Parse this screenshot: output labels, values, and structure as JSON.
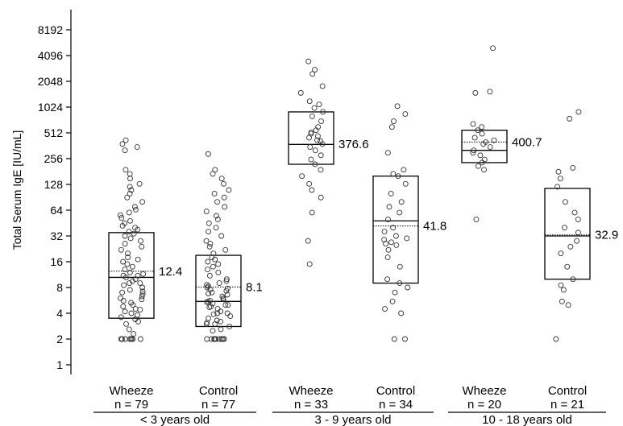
{
  "chart_data": {
    "type": "box-scatter",
    "ylabel": "Total Serum IgE [IU/mL]",
    "y_scale": "log2",
    "y_ticks": [
      1,
      2,
      4,
      8,
      16,
      32,
      64,
      128,
      256,
      512,
      1024,
      2048,
      4096,
      8192
    ],
    "y_tick_labels": [
      "1",
      "2",
      "4",
      "8",
      "16",
      "32",
      "64",
      "128",
      "256",
      "512",
      "1024",
      "2048",
      "4096",
      "8192"
    ],
    "ylim": [
      0.7,
      16384
    ],
    "age_groups": [
      "< 3 years old",
      "3 - 9 years old",
      "10 - 18 years old"
    ],
    "groups": [
      {
        "name": "Wheeze",
        "n_label": "n = 79",
        "age_group": 0,
        "q1": 3.5,
        "median": 10.5,
        "q3": 35,
        "mean": 12.4,
        "mean_label": "12.4",
        "points": [
          2,
          2,
          2,
          2,
          2,
          2,
          2,
          2,
          2.3,
          2.6,
          3,
          3.2,
          3.4,
          3.6,
          4,
          4.2,
          4.5,
          4.8,
          5,
          5.3,
          5.6,
          6,
          6.3,
          6.7,
          7,
          7.5,
          8,
          8.5,
          9,
          9.5,
          10,
          10.5,
          11,
          11.5,
          12,
          13,
          14,
          15,
          16,
          17,
          18,
          20,
          22,
          24,
          26,
          28,
          30,
          32,
          34,
          36,
          38,
          40,
          42,
          45,
          48,
          52,
          56,
          60,
          65,
          70,
          80,
          90,
          100,
          110,
          120,
          130,
          150,
          170,
          190,
          320,
          350,
          380,
          420,
          11,
          9,
          7.2,
          5.8,
          4.4,
          3.8
        ]
      },
      {
        "name": "Control",
        "n_label": "n = 77",
        "age_group": 0,
        "q1": 2.8,
        "median": 5.5,
        "q3": 19,
        "mean": 8.1,
        "mean_label": "8.1",
        "points": [
          2,
          2,
          2,
          2,
          2,
          2,
          2,
          2,
          2,
          2.5,
          2.8,
          3,
          3,
          3.2,
          3.3,
          3.5,
          3.7,
          4,
          4,
          4.2,
          4.5,
          4.7,
          5,
          5,
          5.2,
          5.4,
          5.6,
          5.8,
          6,
          6.3,
          6.6,
          7,
          7.3,
          7.6,
          8,
          8.3,
          8.6,
          9,
          9.5,
          10,
          11,
          12,
          13,
          14,
          15,
          16,
          17,
          18,
          20,
          22,
          24,
          26,
          28,
          32,
          36,
          40,
          45,
          50,
          55,
          62,
          70,
          80,
          90,
          100,
          110,
          130,
          150,
          170,
          190,
          290,
          7.8,
          6.8,
          5.5,
          4.8,
          3.9,
          3.1,
          2.6
        ]
      },
      {
        "name": "Wheeze",
        "n_label": "n = 33",
        "age_group": 1,
        "q1": 220,
        "median": 375,
        "q3": 900,
        "mean": 376.6,
        "mean_label": "376.6",
        "points": [
          15,
          28,
          60,
          90,
          110,
          130,
          160,
          190,
          220,
          250,
          280,
          320,
          350,
          380,
          410,
          450,
          500,
          550,
          600,
          700,
          800,
          900,
          1000,
          1100,
          1200,
          1500,
          1800,
          2500,
          2800,
          3500,
          420,
          470,
          520
        ]
      },
      {
        "name": "Control",
        "n_label": "n = 34",
        "age_group": 1,
        "q1": 9,
        "median": 48,
        "q3": 160,
        "mean": 41.8,
        "mean_label": "41.8",
        "points": [
          2,
          2,
          4,
          4.5,
          5.5,
          7,
          8,
          9,
          10,
          14,
          18,
          22,
          25,
          27,
          29,
          30,
          32,
          36,
          40,
          50,
          60,
          70,
          80,
          100,
          130,
          160,
          170,
          190,
          300,
          600,
          700,
          850,
          1050,
          26
        ]
      },
      {
        "name": "Wheeze",
        "n_label": "n = 20",
        "age_group": 2,
        "q1": 230,
        "median": 320,
        "q3": 550,
        "mean": 400.7,
        "mean_label": "400.7",
        "points": [
          50,
          190,
          210,
          230,
          250,
          280,
          300,
          320,
          350,
          380,
          400,
          420,
          450,
          500,
          550,
          600,
          650,
          1500,
          1550,
          5000
        ]
      },
      {
        "name": "Control",
        "n_label": "n = 21",
        "age_group": 2,
        "q1": 10,
        "median": 32,
        "q3": 115,
        "mean": 32.9,
        "mean_label": "32.9",
        "points": [
          2,
          5,
          5.5,
          7.5,
          8.5,
          10,
          14,
          20,
          24,
          28,
          35,
          40,
          50,
          60,
          80,
          120,
          150,
          180,
          200,
          750,
          900
        ]
      }
    ]
  }
}
